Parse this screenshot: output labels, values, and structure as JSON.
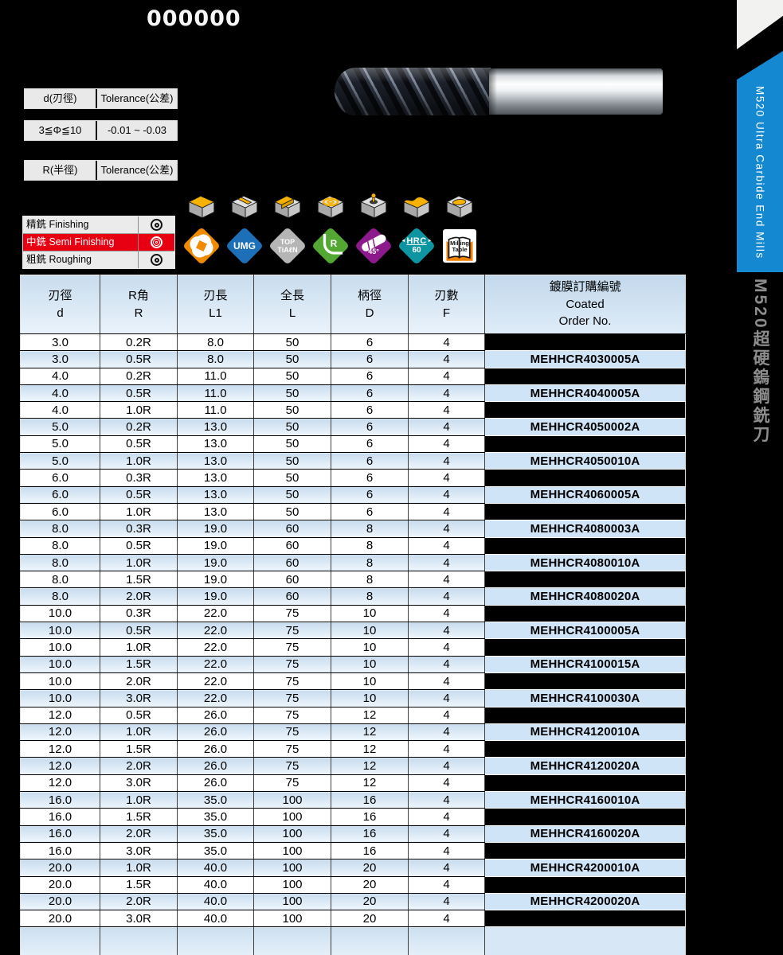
{
  "page": {
    "title": "000000",
    "bg": "#000000"
  },
  "colors": {
    "highlight_red": "#e60012",
    "banner_blue": "#1489d2",
    "series_gray": "#8d8d8d",
    "header_blue": "#c9ddee",
    "row_blue": "#cde0f0",
    "order_cell_blue": "#cfe4f7",
    "badge_orange": "#f08a00",
    "badge_blue": "#1d70b7",
    "badge_gray": "#b5b5b6",
    "badge_green": "#53a733",
    "badge_purple": "#8d1a8c",
    "badge_teal": "#0d95a2",
    "icon_yellow": "#f7b100"
  },
  "tolerance_tables": [
    {
      "cells": [
        "d(刃徑)",
        "Tolerance(公差)"
      ]
    },
    {
      "cells": [
        "3≦Φ≦10",
        "-0.01 ~ -0.03"
      ]
    },
    {
      "cells": [
        "R(半徑)",
        "Tolerance(公差)"
      ]
    }
  ],
  "finishing_table": {
    "rows": [
      {
        "label": "精銑 Finishing",
        "mark": "◎",
        "highlight": false
      },
      {
        "label": "中銑 Semi Finishing",
        "mark": "◎",
        "highlight": true
      },
      {
        "label": "粗銑 Roughing",
        "mark": "◎",
        "highlight": false
      }
    ]
  },
  "application_icons": [
    "face-milling-icon",
    "slot-milling-icon",
    "shoulder-milling-icon",
    "helical-milling-icon",
    "drilling-icon",
    "profile-milling-icon",
    "pocket-milling-icon"
  ],
  "badges": [
    {
      "name": "four-flute-end-mill",
      "label": ""
    },
    {
      "name": "umg-coating",
      "label": "UMG"
    },
    {
      "name": "top-tialn-coating",
      "line1": "TOP",
      "line2": "TiAℓN"
    },
    {
      "name": "corner-radius",
      "label": "R"
    },
    {
      "name": "helix-45",
      "label": "45°"
    },
    {
      "name": "hardness-hrc",
      "label": "HRC",
      "value": "60"
    },
    {
      "name": "milling-table",
      "line1": "Milling",
      "line2": "Table"
    }
  ],
  "sidebar": {
    "banner_text": "M520 Ultra Carbide End Mills",
    "series_text": "M520超硬鎢鋼銑刀"
  },
  "table": {
    "headers": [
      {
        "zh": "刃徑",
        "en": "d"
      },
      {
        "zh": "R角",
        "en": "R"
      },
      {
        "zh": "刃長",
        "en": "L1"
      },
      {
        "zh": "全長",
        "en": "L"
      },
      {
        "zh": "柄徑",
        "en": "D"
      },
      {
        "zh": "刃數",
        "en": "F"
      },
      {
        "zh": "鍍膜訂購編號",
        "en": "Coated",
        "en2": "Order No."
      }
    ],
    "rows": [
      [
        "3.0",
        "0.2R",
        "8.0",
        "50",
        "6",
        "4",
        ""
      ],
      [
        "3.0",
        "0.5R",
        "8.0",
        "50",
        "6",
        "4",
        "MEHHCR4030005A"
      ],
      [
        "4.0",
        "0.2R",
        "11.0",
        "50",
        "6",
        "4",
        ""
      ],
      [
        "4.0",
        "0.5R",
        "11.0",
        "50",
        "6",
        "4",
        "MEHHCR4040005A"
      ],
      [
        "4.0",
        "1.0R",
        "11.0",
        "50",
        "6",
        "4",
        ""
      ],
      [
        "5.0",
        "0.2R",
        "13.0",
        "50",
        "6",
        "4",
        "MEHHCR4050002A"
      ],
      [
        "5.0",
        "0.5R",
        "13.0",
        "50",
        "6",
        "4",
        ""
      ],
      [
        "5.0",
        "1.0R",
        "13.0",
        "50",
        "6",
        "4",
        "MEHHCR4050010A"
      ],
      [
        "6.0",
        "0.3R",
        "13.0",
        "50",
        "6",
        "4",
        ""
      ],
      [
        "6.0",
        "0.5R",
        "13.0",
        "50",
        "6",
        "4",
        "MEHHCR4060005A"
      ],
      [
        "6.0",
        "1.0R",
        "13.0",
        "50",
        "6",
        "4",
        ""
      ],
      [
        "8.0",
        "0.3R",
        "19.0",
        "60",
        "8",
        "4",
        "MEHHCR4080003A"
      ],
      [
        "8.0",
        "0.5R",
        "19.0",
        "60",
        "8",
        "4",
        ""
      ],
      [
        "8.0",
        "1.0R",
        "19.0",
        "60",
        "8",
        "4",
        "MEHHCR4080010A"
      ],
      [
        "8.0",
        "1.5R",
        "19.0",
        "60",
        "8",
        "4",
        ""
      ],
      [
        "8.0",
        "2.0R",
        "19.0",
        "60",
        "8",
        "4",
        "MEHHCR4080020A"
      ],
      [
        "10.0",
        "0.3R",
        "22.0",
        "75",
        "10",
        "4",
        ""
      ],
      [
        "10.0",
        "0.5R",
        "22.0",
        "75",
        "10",
        "4",
        "MEHHCR4100005A"
      ],
      [
        "10.0",
        "1.0R",
        "22.0",
        "75",
        "10",
        "4",
        ""
      ],
      [
        "10.0",
        "1.5R",
        "22.0",
        "75",
        "10",
        "4",
        "MEHHCR4100015A"
      ],
      [
        "10.0",
        "2.0R",
        "22.0",
        "75",
        "10",
        "4",
        ""
      ],
      [
        "10.0",
        "3.0R",
        "22.0",
        "75",
        "10",
        "4",
        "MEHHCR4100030A"
      ],
      [
        "12.0",
        "0.5R",
        "26.0",
        "75",
        "12",
        "4",
        ""
      ],
      [
        "12.0",
        "1.0R",
        "26.0",
        "75",
        "12",
        "4",
        "MEHHCR4120010A"
      ],
      [
        "12.0",
        "1.5R",
        "26.0",
        "75",
        "12",
        "4",
        ""
      ],
      [
        "12.0",
        "2.0R",
        "26.0",
        "75",
        "12",
        "4",
        "MEHHCR4120020A"
      ],
      [
        "12.0",
        "3.0R",
        "26.0",
        "75",
        "12",
        "4",
        ""
      ],
      [
        "16.0",
        "1.0R",
        "35.0",
        "100",
        "16",
        "4",
        "MEHHCR4160010A"
      ],
      [
        "16.0",
        "1.5R",
        "35.0",
        "100",
        "16",
        "4",
        ""
      ],
      [
        "16.0",
        "2.0R",
        "35.0",
        "100",
        "16",
        "4",
        "MEHHCR4160020A"
      ],
      [
        "16.0",
        "3.0R",
        "35.0",
        "100",
        "16",
        "4",
        ""
      ],
      [
        "20.0",
        "1.0R",
        "40.0",
        "100",
        "20",
        "4",
        "MEHHCR4200010A"
      ],
      [
        "20.0",
        "1.5R",
        "40.0",
        "100",
        "20",
        "4",
        ""
      ],
      [
        "20.0",
        "2.0R",
        "40.0",
        "100",
        "20",
        "4",
        "MEHHCR4200020A"
      ],
      [
        "20.0",
        "3.0R",
        "40.0",
        "100",
        "20",
        "4",
        ""
      ]
    ]
  }
}
